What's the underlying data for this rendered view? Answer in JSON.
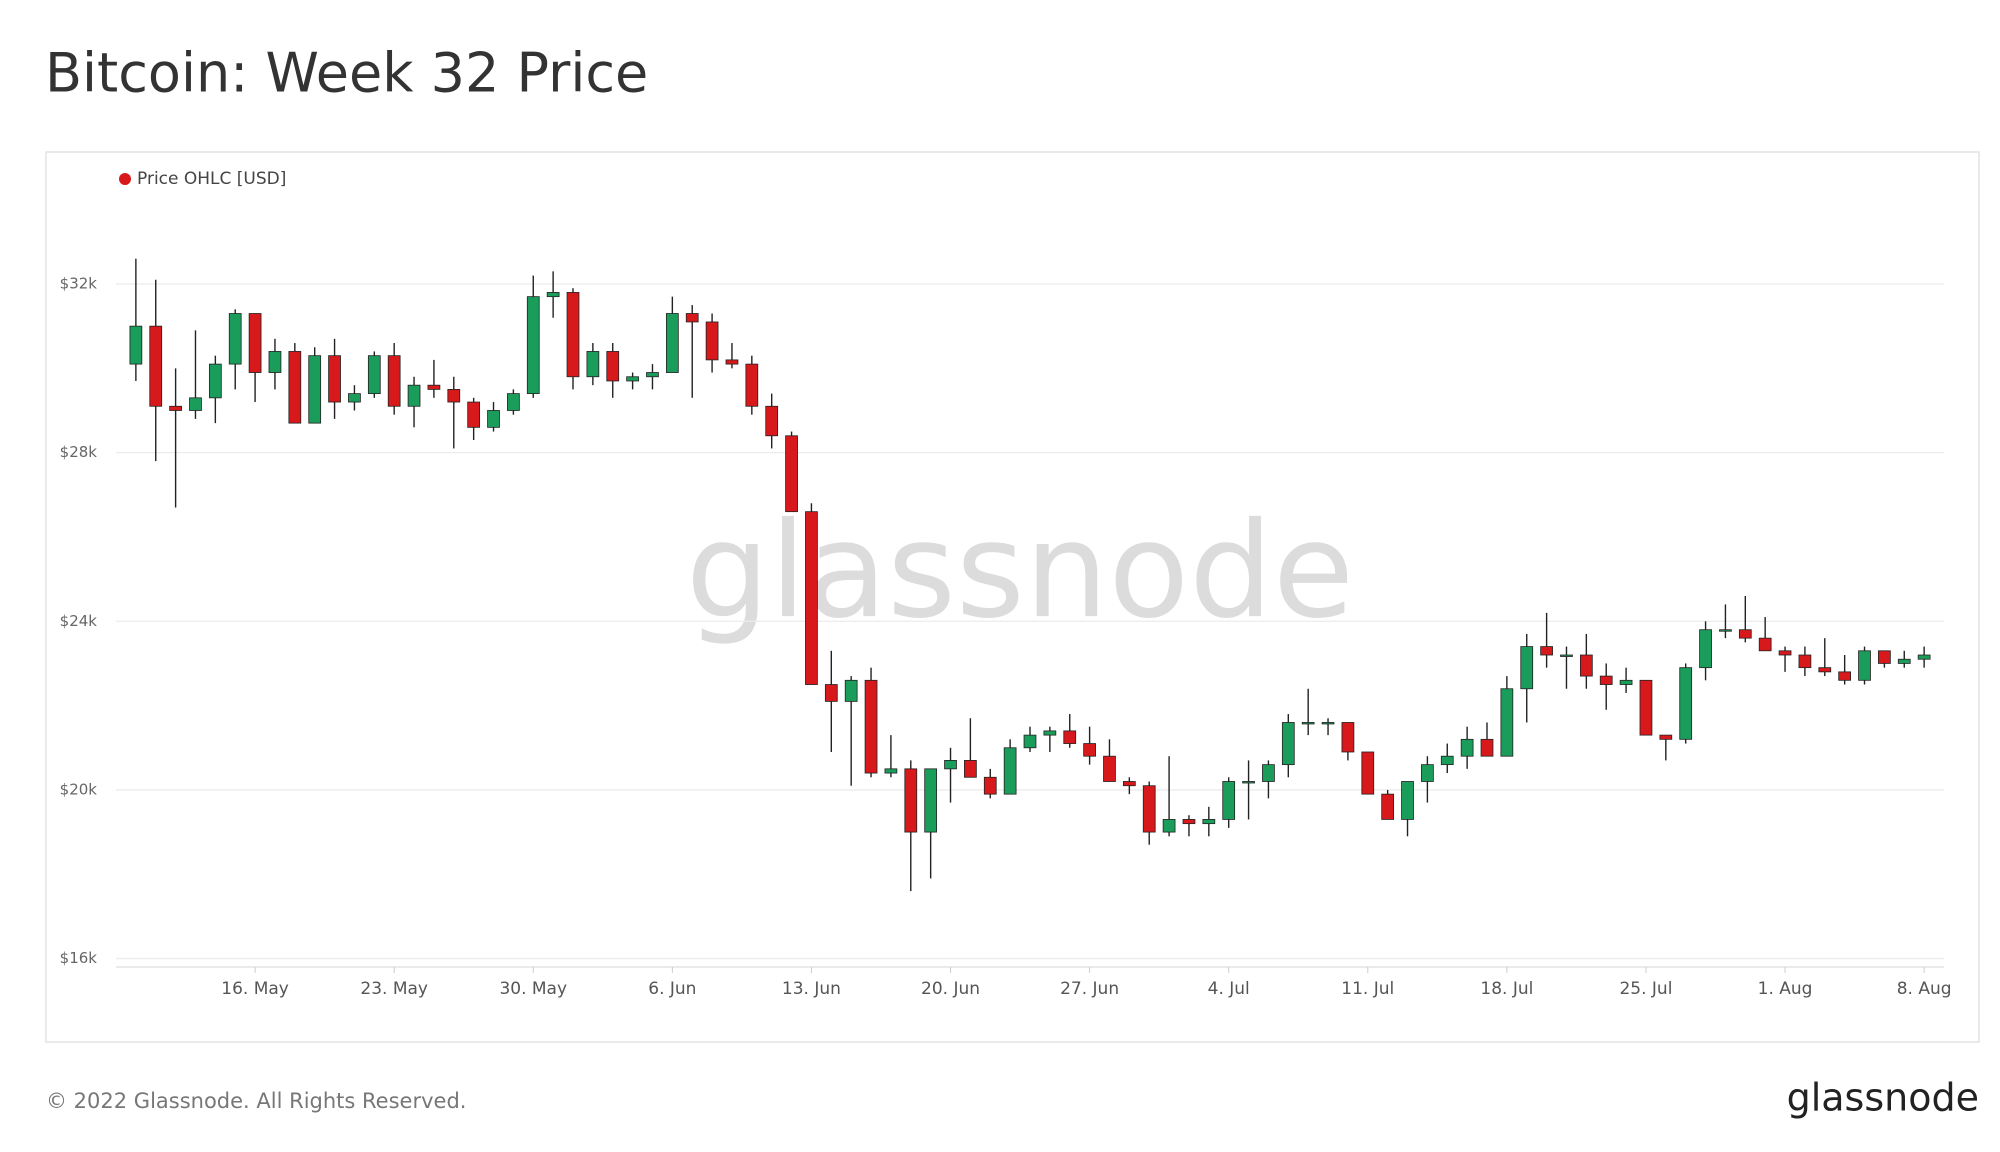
{
  "header": {
    "title": "Bitcoin: Week 32 Price"
  },
  "footer": {
    "copyright": "© 2022 Glassnode. All Rights Reserved.",
    "logo": "glassnode"
  },
  "chart_data": {
    "type": "candlestick",
    "watermark": "glassnode",
    "ylim": [
      15800,
      33850
    ],
    "yticks": [
      {
        "value": 16000,
        "label": "$16k"
      },
      {
        "value": 20000,
        "label": "$20k"
      },
      {
        "value": 24000,
        "label": "$24k"
      },
      {
        "value": 28000,
        "label": "$28k"
      },
      {
        "value": 32000,
        "label": "$32k"
      }
    ],
    "xlim": [
      "05-09",
      "08-09"
    ],
    "xticks": [
      {
        "value": "05-16",
        "label": "16. May"
      },
      {
        "value": "05-23",
        "label": "23. May"
      },
      {
        "value": "05-30",
        "label": "30. May"
      },
      {
        "value": "06-06",
        "label": "6. Jun"
      },
      {
        "value": "06-13",
        "label": "13. Jun"
      },
      {
        "value": "06-20",
        "label": "20. Jun"
      },
      {
        "value": "06-27",
        "label": "27. Jun"
      },
      {
        "value": "07-04",
        "label": "4. Jul"
      },
      {
        "value": "07-11",
        "label": "11. Jul"
      },
      {
        "value": "07-18",
        "label": "18. Jul"
      },
      {
        "value": "07-25",
        "label": "25. Jul"
      },
      {
        "value": "08-01",
        "label": "1. Aug"
      },
      {
        "value": "08-08",
        "label": "8. Aug"
      }
    ],
    "grid": true,
    "legend": "top-left",
    "x": [
      "05-10",
      "05-11",
      "05-12",
      "05-13",
      "05-14",
      "05-15",
      "05-16",
      "05-17",
      "05-18",
      "05-19",
      "05-20",
      "05-21",
      "05-22",
      "05-23",
      "05-24",
      "05-25",
      "05-26",
      "05-27",
      "05-28",
      "05-29",
      "05-30",
      "05-31",
      "06-01",
      "06-02",
      "06-03",
      "06-04",
      "06-05",
      "06-06",
      "06-07",
      "06-08",
      "06-09",
      "06-10",
      "06-11",
      "06-12",
      "06-13",
      "06-14",
      "06-15",
      "06-16",
      "06-17",
      "06-18",
      "06-19",
      "06-20",
      "06-21",
      "06-22",
      "06-23",
      "06-24",
      "06-25",
      "06-26",
      "06-27",
      "06-28",
      "06-29",
      "06-30",
      "07-01",
      "07-02",
      "07-03",
      "07-04",
      "07-05",
      "07-06",
      "07-07",
      "07-08",
      "07-09",
      "07-10",
      "07-11",
      "07-12",
      "07-13",
      "07-14",
      "07-15",
      "07-16",
      "07-17",
      "07-18",
      "07-19",
      "07-20",
      "07-21",
      "07-22",
      "07-23",
      "07-24",
      "07-25",
      "07-26",
      "07-27",
      "07-28",
      "07-29",
      "07-30",
      "07-31",
      "08-01",
      "08-02",
      "08-03",
      "08-04",
      "08-05",
      "08-06",
      "08-07",
      "08-08"
    ],
    "series": [
      {
        "name": "Price OHLC [USD]",
        "color": "#d7191c",
        "up_color": "#1a9c5b",
        "open": [
          30100,
          31000,
          29100,
          29000,
          29300,
          30100,
          31300,
          29900,
          30400,
          28700,
          30300,
          29200,
          29400,
          30300,
          29100,
          29600,
          29500,
          29200,
          28600,
          29000,
          29400,
          31700,
          31800,
          29800,
          30400,
          29700,
          29800,
          29900,
          31300,
          31100,
          30200,
          30100,
          29100,
          28400,
          26600,
          22500,
          22100,
          22600,
          20400,
          20500,
          19000,
          20500,
          20700,
          20300,
          19900,
          21000,
          21300,
          21400,
          21100,
          20800,
          20200,
          20100,
          19000,
          19300,
          19200,
          19300,
          20200,
          20200,
          20600,
          21600,
          21600,
          21600,
          20900,
          19900,
          19300,
          20200,
          20600,
          20800,
          21200,
          20800,
          22400,
          23400,
          23200,
          23200,
          22700,
          22500,
          22600,
          21300,
          21200,
          22900,
          23800,
          23800,
          23600,
          23300,
          23200,
          22900,
          22800,
          22600,
          23300,
          23000,
          23100
        ],
        "high": [
          32600,
          32100,
          30000,
          30900,
          30300,
          31400,
          31300,
          30700,
          30600,
          30500,
          30700,
          29600,
          30400,
          30600,
          29800,
          30200,
          29800,
          29300,
          29200,
          29500,
          32200,
          32300,
          31900,
          30600,
          30600,
          29900,
          30100,
          31700,
          31500,
          31300,
          30600,
          30300,
          29400,
          28500,
          26800,
          23300,
          22700,
          22900,
          21300,
          20700,
          20500,
          21000,
          21700,
          20500,
          21200,
          21500,
          21500,
          21800,
          21500,
          21200,
          20300,
          20200,
          20800,
          19400,
          19600,
          20300,
          20700,
          20700,
          21800,
          22400,
          21700,
          21600,
          20900,
          20000,
          20200,
          20800,
          21100,
          21500,
          21600,
          22700,
          23700,
          24200,
          23400,
          23700,
          23000,
          22900,
          22600,
          21300,
          23000,
          24000,
          24400,
          24600,
          24100,
          23400,
          23400,
          23600,
          23200,
          23400,
          23300,
          23300,
          23400
        ],
        "low": [
          29700,
          27800,
          26700,
          28800,
          28700,
          29500,
          29200,
          29500,
          28700,
          28700,
          28800,
          29000,
          29300,
          28900,
          28600,
          29300,
          28100,
          28300,
          28500,
          28900,
          29300,
          31200,
          29500,
          29600,
          29300,
          29500,
          29500,
          29900,
          29300,
          29900,
          30000,
          28900,
          28100,
          26600,
          22600,
          20900,
          20100,
          20300,
          20300,
          17600,
          17900,
          19700,
          20400,
          19800,
          19900,
          20900,
          20900,
          21000,
          20600,
          20200,
          19900,
          18700,
          18900,
          18900,
          18900,
          19100,
          19300,
          19800,
          20300,
          21300,
          21300,
          20700,
          19900,
          19300,
          18900,
          19700,
          20400,
          20500,
          20800,
          20800,
          21600,
          22900,
          22400,
          22400,
          21900,
          22300,
          21300,
          20700,
          21100,
          22600,
          23600,
          23500,
          23300,
          22800,
          22700,
          22700,
          22500,
          22500,
          22900,
          22900,
          22900
        ],
        "close": [
          31000,
          29100,
          29000,
          29300,
          30100,
          31300,
          29900,
          30400,
          28700,
          30300,
          29200,
          29400,
          30300,
          29100,
          29600,
          29500,
          29200,
          28600,
          29000,
          29400,
          31700,
          31800,
          29800,
          30400,
          29700,
          29800,
          29900,
          31300,
          31100,
          30200,
          30100,
          29100,
          28400,
          26600,
          22500,
          22100,
          22600,
          20400,
          20500,
          19000,
          20500,
          20700,
          20300,
          19900,
          21000,
          21300,
          21400,
          21100,
          20800,
          20200,
          20100,
          19000,
          19300,
          19200,
          19300,
          20200,
          20200,
          20600,
          21600,
          21600,
          21600,
          20900,
          19900,
          19300,
          20200,
          20600,
          20800,
          21200,
          20800,
          22400,
          23400,
          23200,
          23200,
          22700,
          22500,
          22600,
          21300,
          21200,
          22900,
          23800,
          23800,
          23600,
          23300,
          23200,
          22900,
          22800,
          22600,
          23300,
          23000,
          23100,
          23200
        ]
      }
    ]
  }
}
